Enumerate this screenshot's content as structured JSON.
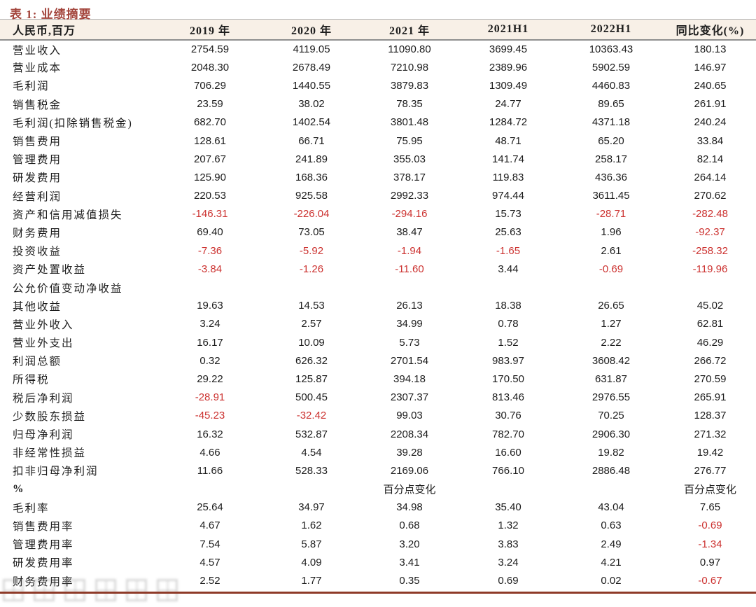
{
  "page": {
    "title": "表 1: 业绩摘要"
  },
  "colors": {
    "title": "#A3453C",
    "negative": "#CC3230",
    "header_bg": "#F8F0E7",
    "bottom_rule": "#8E3A28",
    "text": "#1c1c1c"
  },
  "table": {
    "columns": [
      "人民币,百万",
      "2019 年",
      "2020 年",
      "2021 年",
      "2021H1",
      "2022H1",
      "同比变化(%)"
    ],
    "rows": [
      {
        "label": "营业收入",
        "values": [
          "2754.59",
          "4119.05",
          "11090.80",
          "3699.45",
          "10363.43",
          "180.13"
        ],
        "red": []
      },
      {
        "label": "营业成本",
        "values": [
          "2048.30",
          "2678.49",
          "7210.98",
          "2389.96",
          "5902.59",
          "146.97"
        ],
        "red": []
      },
      {
        "label": "毛利润",
        "values": [
          "706.29",
          "1440.55",
          "3879.83",
          "1309.49",
          "4460.83",
          "240.65"
        ],
        "red": []
      },
      {
        "label": "销售税金",
        "values": [
          "23.59",
          "38.02",
          "78.35",
          "24.77",
          "89.65",
          "261.91"
        ],
        "red": []
      },
      {
        "label": "毛利润(扣除销售税金)",
        "values": [
          "682.70",
          "1402.54",
          "3801.48",
          "1284.72",
          "4371.18",
          "240.24"
        ],
        "red": []
      },
      {
        "label": "销售费用",
        "values": [
          "128.61",
          "66.71",
          "75.95",
          "48.71",
          "65.20",
          "33.84"
        ],
        "red": []
      },
      {
        "label": "管理费用",
        "values": [
          "207.67",
          "241.89",
          "355.03",
          "141.74",
          "258.17",
          "82.14"
        ],
        "red": []
      },
      {
        "label": "研发费用",
        "values": [
          "125.90",
          "168.36",
          "378.17",
          "119.83",
          "436.36",
          "264.14"
        ],
        "red": []
      },
      {
        "label": "经营利润",
        "values": [
          "220.53",
          "925.58",
          "2992.33",
          "974.44",
          "3611.45",
          "270.62"
        ],
        "red": []
      },
      {
        "label": "资产和信用减值损失",
        "values": [
          "-146.31",
          "-226.04",
          "-294.16",
          "15.73",
          "-28.71",
          "-282.48"
        ],
        "red": [
          0,
          1,
          2,
          4,
          5
        ]
      },
      {
        "label": "财务费用",
        "values": [
          "69.40",
          "73.05",
          "38.47",
          "25.63",
          "1.96",
          "-92.37"
        ],
        "red": [
          5
        ]
      },
      {
        "label": "投资收益",
        "values": [
          "-7.36",
          "-5.92",
          "-1.94",
          "-1.65",
          "2.61",
          "-258.32"
        ],
        "red": [
          0,
          1,
          2,
          3,
          5
        ]
      },
      {
        "label": "资产处置收益",
        "values": [
          "-3.84",
          "-1.26",
          "-11.60",
          "3.44",
          "-0.69",
          "-119.96"
        ],
        "red": [
          0,
          1,
          2,
          4,
          5
        ]
      },
      {
        "label": "公允价值变动净收益",
        "values": [
          "",
          "",
          "",
          "",
          "",
          ""
        ],
        "red": []
      },
      {
        "label": "其他收益",
        "values": [
          "19.63",
          "14.53",
          "26.13",
          "18.38",
          "26.65",
          "45.02"
        ],
        "red": []
      },
      {
        "label": "营业外收入",
        "values": [
          "3.24",
          "2.57",
          "34.99",
          "0.78",
          "1.27",
          "62.81"
        ],
        "red": []
      },
      {
        "label": "营业外支出",
        "values": [
          "16.17",
          "10.09",
          "5.73",
          "1.52",
          "2.22",
          "46.29"
        ],
        "red": []
      },
      {
        "label": "利润总额",
        "values": [
          "0.32",
          "626.32",
          "2701.54",
          "983.97",
          "3608.42",
          "266.72"
        ],
        "red": []
      },
      {
        "label": "所得税",
        "values": [
          "29.22",
          "125.87",
          "394.18",
          "170.50",
          "631.87",
          "270.59"
        ],
        "red": []
      },
      {
        "label": "税后净利润",
        "values": [
          "-28.91",
          "500.45",
          "2307.37",
          "813.46",
          "2976.55",
          "265.91"
        ],
        "red": [
          0
        ]
      },
      {
        "label": "少数股东损益",
        "values": [
          "-45.23",
          "-32.42",
          "99.03",
          "30.76",
          "70.25",
          "128.37"
        ],
        "red": [
          0,
          1
        ]
      },
      {
        "label": "归母净利润",
        "values": [
          "16.32",
          "532.87",
          "2208.34",
          "782.70",
          "2906.30",
          "271.32"
        ],
        "red": []
      },
      {
        "label": "非经常性损益",
        "values": [
          "4.66",
          "4.54",
          "39.28",
          "16.60",
          "19.82",
          "19.42"
        ],
        "red": []
      },
      {
        "label": "扣非归母净利润",
        "values": [
          "11.66",
          "528.33",
          "2169.06",
          "766.10",
          "2886.48",
          "276.77"
        ],
        "red": []
      },
      {
        "label": "%",
        "bold": true,
        "values": [
          "",
          "",
          "百分点变化",
          "",
          "",
          "百分点变化"
        ],
        "red": []
      },
      {
        "label": "毛利率",
        "values": [
          "25.64",
          "34.97",
          "34.98",
          "35.40",
          "43.04",
          "7.65"
        ],
        "red": []
      },
      {
        "label": "销售费用率",
        "values": [
          "4.67",
          "1.62",
          "0.68",
          "1.32",
          "0.63",
          "-0.69"
        ],
        "red": [
          5
        ]
      },
      {
        "label": "管理费用率",
        "values": [
          "7.54",
          "5.87",
          "3.20",
          "3.83",
          "2.49",
          "-1.34"
        ],
        "red": [
          5
        ]
      },
      {
        "label": "研发费用率",
        "values": [
          "4.57",
          "4.09",
          "3.41",
          "3.24",
          "4.21",
          "0.97"
        ],
        "red": []
      },
      {
        "label": "财务费用率",
        "values": [
          "2.52",
          "1.77",
          "0.35",
          "0.69",
          "0.02",
          "-0.67"
        ],
        "red": [
          5
        ]
      }
    ]
  }
}
